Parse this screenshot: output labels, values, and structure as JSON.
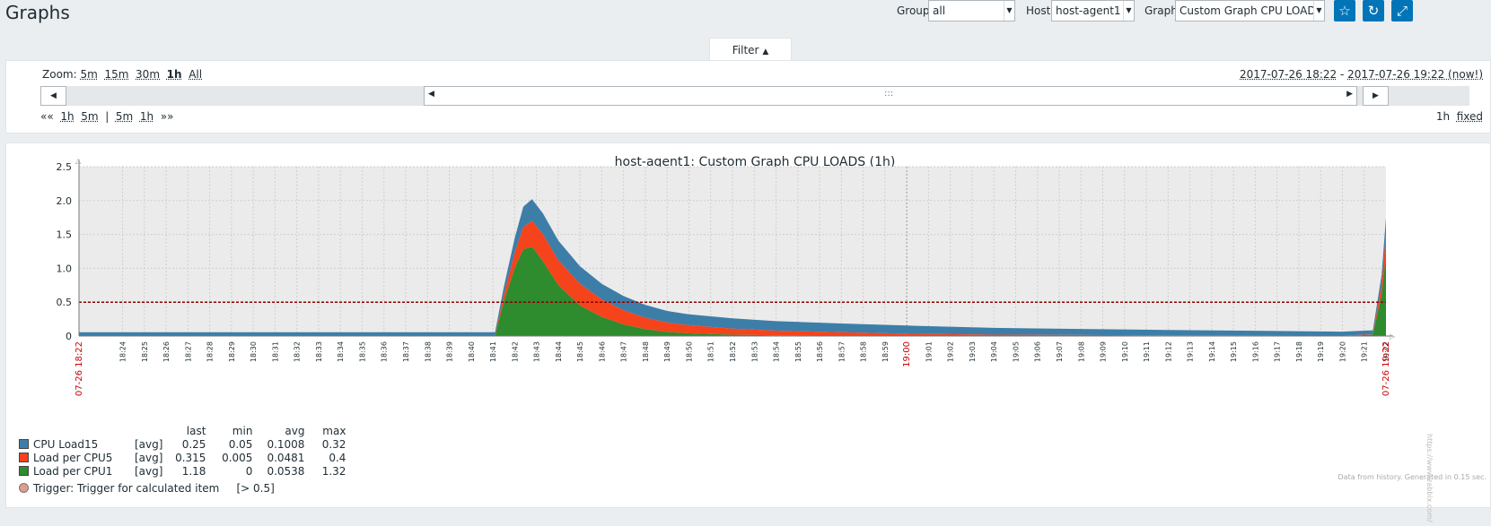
{
  "page": {
    "title": "Graphs",
    "filters": {
      "group_label": "Group",
      "group_value": "all",
      "host_label": "Host",
      "host_value": "host-agent1",
      "graph_label": "Graph",
      "graph_value": "Custom Graph CPU LOADS"
    },
    "filter_tab": "Filter"
  },
  "timeline": {
    "zoom_label": "Zoom:",
    "zoom_options": [
      "5m",
      "15m",
      "30m",
      "1h",
      "All"
    ],
    "zoom_active": "1h",
    "period_from": "2017-07-26 18:22",
    "period_sep": " - ",
    "period_to": "2017-07-26 19:22 (now!)",
    "nav": {
      "back": "««",
      "b1h": "1h",
      "b5m": "5m",
      "sep": "|",
      "f5m": "5m",
      "f1h": "1h",
      "fwd": "»»"
    },
    "duration": "1h",
    "fixed": "fixed",
    "scroller_grip": ":::"
  },
  "chart_data": {
    "type": "area",
    "title": "host-agent1: Custom Graph CPU LOADS (1h)",
    "ylim": [
      0,
      2.5
    ],
    "y_ticks": [
      "0",
      "0.5",
      "1.0",
      "1.5",
      "2.0",
      "2.5"
    ],
    "x_start_label": "07-26 18:22",
    "x_end_label": "07-26 19:22",
    "x_ticks": [
      "18:24",
      "18:25",
      "18:26",
      "18:27",
      "18:28",
      "18:29",
      "18:30",
      "18:31",
      "18:32",
      "18:33",
      "18:34",
      "18:35",
      "18:36",
      "18:37",
      "18:38",
      "18:39",
      "18:40",
      "18:41",
      "18:42",
      "18:43",
      "18:44",
      "18:45",
      "18:46",
      "18:47",
      "18:48",
      "18:49",
      "18:50",
      "18:51",
      "18:52",
      "18:53",
      "18:54",
      "18:55",
      "18:56",
      "18:57",
      "18:58",
      "18:59",
      "19:00",
      "19:01",
      "19:02",
      "19:03",
      "19:04",
      "19:05",
      "19:06",
      "19:07",
      "19:08",
      "19:09",
      "19:10",
      "19:11",
      "19:12",
      "19:13",
      "19:14",
      "19:15",
      "19:16",
      "19:17",
      "19:18",
      "19:19",
      "19:20",
      "19:21",
      "19:22"
    ],
    "x_highlight": "19:00",
    "x_minutes": [
      0,
      19.1,
      19.5,
      20.0,
      20.4,
      20.8,
      21.3,
      22,
      23,
      24,
      25,
      26,
      27,
      28,
      30,
      32,
      35,
      38,
      42,
      46,
      50,
      54,
      58,
      59.4,
      59.8,
      60
    ],
    "series": [
      {
        "name": "CPU Load15",
        "color": "#3d7ea8",
        "values": [
          0.05,
          0.05,
          0.12,
          0.22,
          0.3,
          0.32,
          0.31,
          0.29,
          0.26,
          0.23,
          0.21,
          0.19,
          0.17,
          0.16,
          0.15,
          0.14,
          0.13,
          0.12,
          0.1,
          0.09,
          0.08,
          0.07,
          0.06,
          0.06,
          0.15,
          0.25
        ]
      },
      {
        "name": "Load per CPU5",
        "color": "#f5431b",
        "values": [
          0.005,
          0.005,
          0.1,
          0.22,
          0.33,
          0.38,
          0.4,
          0.37,
          0.32,
          0.26,
          0.21,
          0.17,
          0.14,
          0.12,
          0.09,
          0.07,
          0.05,
          0.035,
          0.02,
          0.015,
          0.01,
          0.008,
          0.005,
          0.005,
          0.15,
          0.315
        ]
      },
      {
        "name": "Load per CPU1",
        "color": "#2e8b2e",
        "values": [
          0,
          0,
          0.5,
          1.0,
          1.28,
          1.32,
          1.1,
          0.75,
          0.45,
          0.28,
          0.17,
          0.1,
          0.06,
          0.04,
          0.02,
          0.01,
          0.005,
          0,
          0,
          0,
          0,
          0,
          0,
          0.02,
          0.6,
          1.18
        ]
      }
    ],
    "trigger": {
      "name": "Trigger: Trigger for calculated item",
      "condition": "[> 0.5]",
      "value": 0.5,
      "color": "#e09c8f"
    },
    "legend": {
      "headers": [
        "last",
        "min",
        "avg",
        "max"
      ],
      "rows": [
        {
          "name": "CPU Load15",
          "func": "[avg]",
          "last": "0.25",
          "min": "0.05",
          "avg": "0.1008",
          "max": "0.32"
        },
        {
          "name": "Load per CPU5",
          "func": "[avg]",
          "last": "0.315",
          "min": "0.005",
          "avg": "0.0481",
          "max": "0.4"
        },
        {
          "name": "Load per CPU1",
          "func": "[avg]",
          "last": "1.18",
          "min": "0",
          "avg": "0.0538",
          "max": "1.32"
        }
      ]
    },
    "footer_note": "Data from history. Generated in 0.15 sec.",
    "watermark": "https://www.zabbix.com/"
  }
}
